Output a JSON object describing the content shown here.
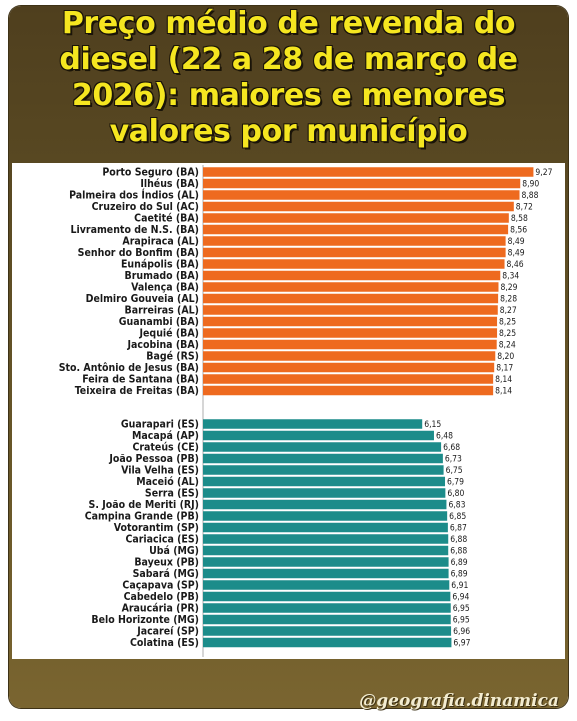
{
  "title": "Preço médio de revenda do\ndiesel (22 a 28 de março de\n2026): maiores e menores\nvalores por município",
  "credit": "@geografia.dinamica",
  "colors": {
    "top": "#ee6a1f",
    "bottom": "#1c8c8a",
    "title": "#f5e620"
  },
  "chart_data": [
    {
      "type": "bar",
      "orientation": "horizontal",
      "series": [
        {
          "color": "#ee6a1f",
          "categories": [
            "Porto Seguro (BA)",
            "Ilhéus (BA)",
            "Palmeira dos Índios (AL)",
            "Cruzeiro do Sul (AC)",
            "Caetité (BA)",
            "Livramento de N.S. (BA)",
            "Arapiraca (AL)",
            "Senhor do Bonfim (BA)",
            "Eunápolis (BA)",
            "Brumado (BA)",
            "Valença (BA)",
            "Delmiro Gouveia (AL)",
            "Barreiras (AL)",
            "Guanambi (BA)",
            "Jequié (BA)",
            "Jacobina (BA)",
            "Bagé (RS)",
            "Sto. Antônio de Jesus (BA)",
            "Feira de Santana (BA)",
            "Teixeira de Freitas (BA)"
          ],
          "values": [
            9.27,
            8.9,
            8.88,
            8.72,
            8.58,
            8.56,
            8.49,
            8.49,
            8.46,
            8.34,
            8.29,
            8.28,
            8.27,
            8.25,
            8.25,
            8.24,
            8.2,
            8.17,
            8.14,
            8.14
          ],
          "labels": [
            "9,27",
            "8,90",
            "8,88",
            "8,72",
            "8,58",
            "8,56",
            "8,49",
            "8,49",
            "8,46",
            "8,34",
            "8,29",
            "8,28",
            "8,27",
            "8,25",
            "8,25",
            "8,24",
            "8,20",
            "8,17",
            "8,14",
            "8,14"
          ]
        },
        {
          "color": "#1c8c8a",
          "categories": [
            "Guarapari (ES)",
            "Macapá (AP)",
            "Crateús (CE)",
            "João Pessoa (PB)",
            "Vila Velha (ES)",
            "Maceió (AL)",
            "Serra (ES)",
            "S. João de Meriti (RJ)",
            "Campina Grande (PB)",
            "Votorantim (SP)",
            "Cariacica (ES)",
            "Ubá (MG)",
            "Bayeux (PB)",
            "Sabará (MG)",
            "Caçapava (SP)",
            "Cabedelo (PB)",
            "Araucária (PR)",
            "Belo Horizonte (MG)",
            "Jacareí (SP)",
            "Colatina (ES)"
          ],
          "values": [
            6.15,
            6.48,
            6.68,
            6.73,
            6.75,
            6.79,
            6.8,
            6.83,
            6.85,
            6.87,
            6.88,
            6.88,
            6.89,
            6.89,
            6.91,
            6.94,
            6.95,
            6.95,
            6.96,
            6.97
          ],
          "labels": [
            "6,15",
            "6,48",
            "6,68",
            "6,73",
            "6,75",
            "6,79",
            "6,80",
            "6,83",
            "6,85",
            "6,87",
            "6,88",
            "6,88",
            "6,89",
            "6,89",
            "6,91",
            "6,94",
            "6,95",
            "6,95",
            "6,96",
            "6,97"
          ]
        }
      ],
      "xlim": [
        0,
        10.1
      ],
      "grid": false,
      "legend": "none"
    }
  ]
}
